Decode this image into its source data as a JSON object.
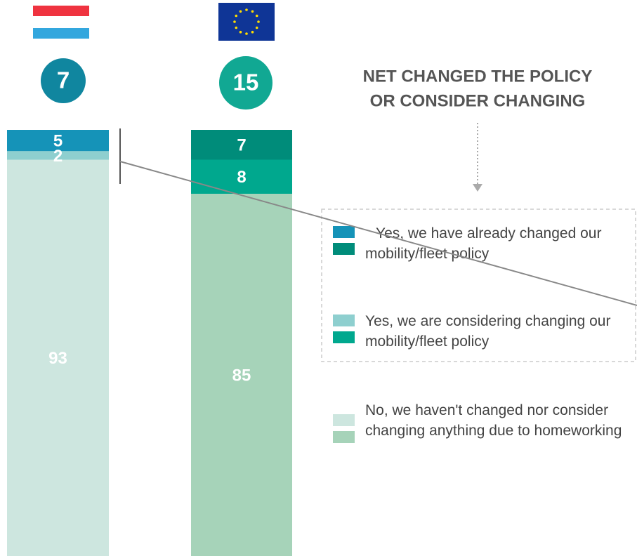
{
  "chart_data": {
    "type": "stacked-bar",
    "title_lines": [
      "NET CHANGED THE POLICY",
      "OR CONSIDER CHANGING"
    ],
    "categories": [
      null,
      null
    ],
    "net_values": [
      7,
      15
    ],
    "net_colors": [
      "#10869f",
      "#11a893"
    ],
    "series": [
      {
        "name": "Yes, we have already changed our mobility/fleet policy",
        "colors": [
          "#1593b8",
          "#008c7a"
        ],
        "values": [
          5,
          7
        ]
      },
      {
        "name": "Yes, we are considering changing our mobility/fleet policy",
        "colors": [
          "#8ecfcf",
          "#00a88e"
        ],
        "values": [
          2,
          8
        ]
      },
      {
        "name": "No, we haven't changed nor consider changing anything due to homeworking",
        "colors": [
          "#cde6df",
          "#a6d3b9"
        ],
        "values": [
          93,
          85
        ]
      }
    ]
  }
}
